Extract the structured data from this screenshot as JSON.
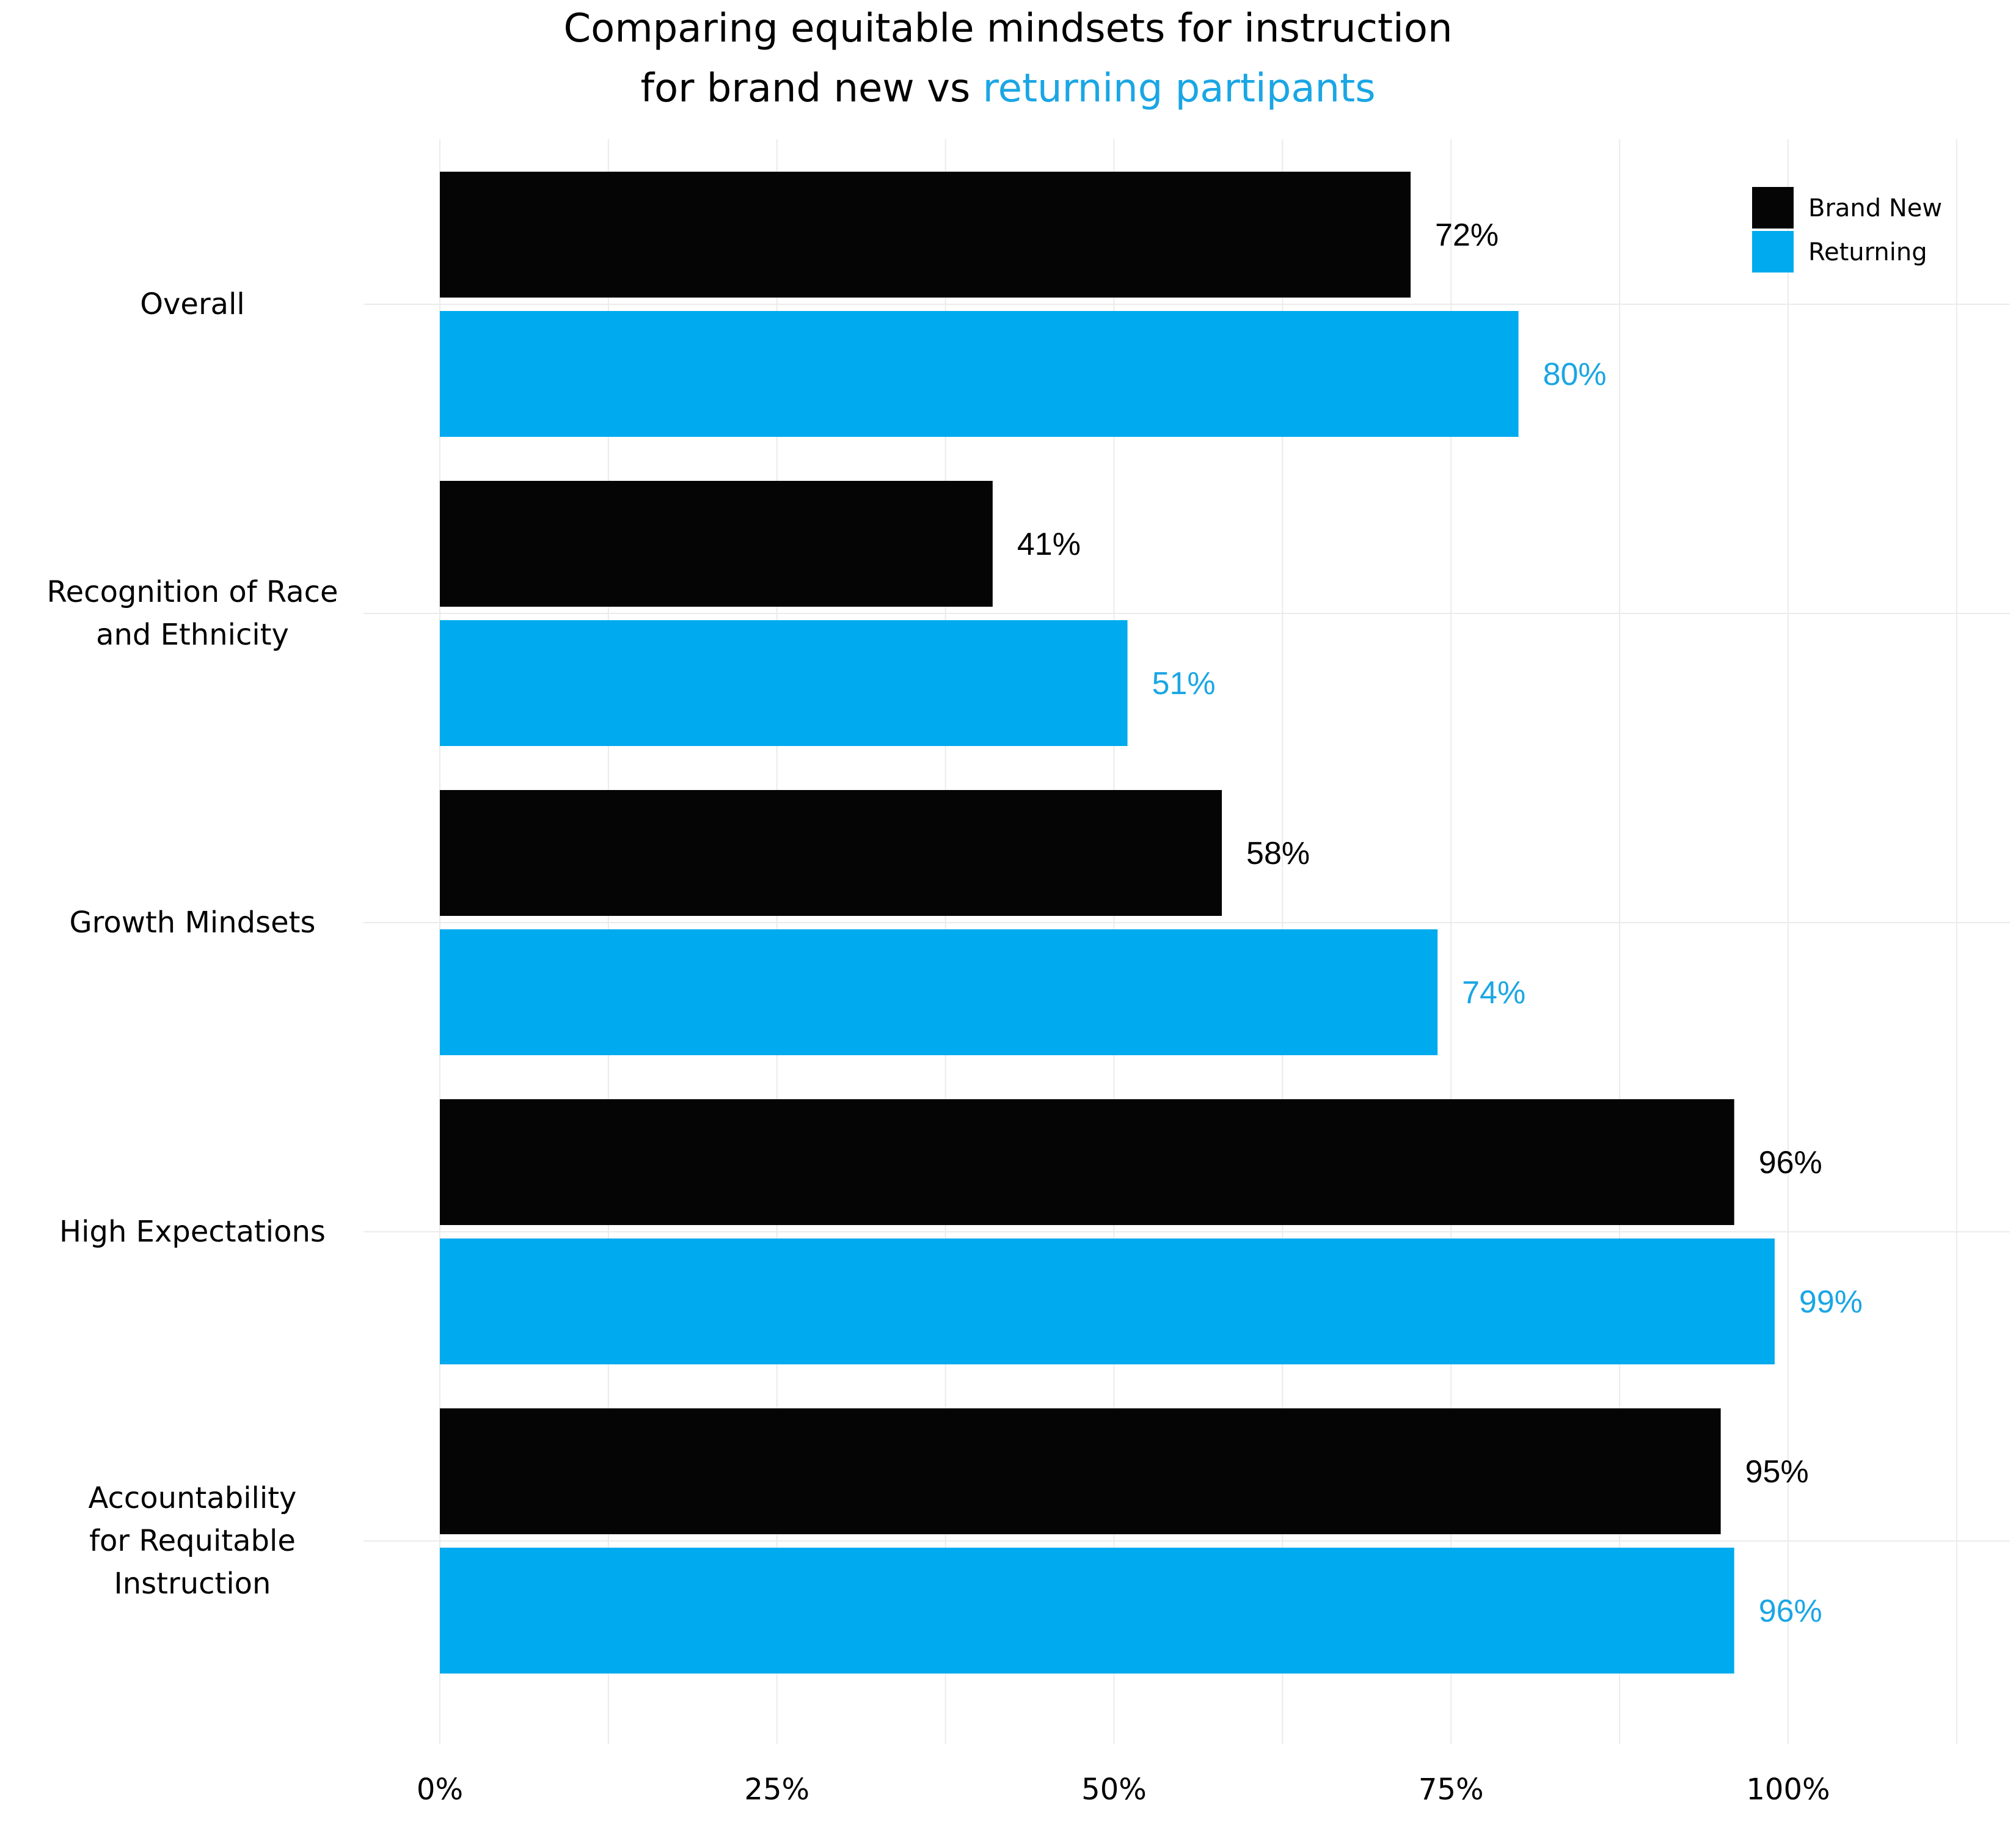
{
  "title": {
    "line1": "Comparing equitable mindsets for instruction",
    "line2_prefix": "for brand new vs ",
    "line2_accent": "returning partipants"
  },
  "colors": {
    "brand_new": "#050505",
    "returning": "#00aaee",
    "returning_text": "#1aa6e4",
    "grid": "#ebebeb"
  },
  "chart_data": {
    "type": "bar",
    "orientation": "horizontal",
    "categories": [
      [
        "Overall"
      ],
      [
        "Recognition of Race",
        "and Ethnicity"
      ],
      [
        "Growth Mindsets"
      ],
      [
        "High Expectations"
      ],
      [
        "Accountability",
        "for Requitable",
        "Instruction"
      ]
    ],
    "series": [
      {
        "name": "Brand New",
        "values": [
          72,
          41,
          58,
          96,
          95
        ],
        "labels": [
          "72%",
          "41%",
          "58%",
          "96%",
          "95%"
        ]
      },
      {
        "name": "Returning",
        "values": [
          80,
          51,
          74,
          99,
          96
        ],
        "labels": [
          "80%",
          "51%",
          "74%",
          "99%",
          "96%"
        ]
      }
    ],
    "xlim": [
      0,
      100
    ],
    "xticks": [
      0,
      25,
      50,
      75,
      100
    ],
    "xtick_labels": [
      "0%",
      "25%",
      "50%",
      "75%",
      "100%"
    ],
    "grid": true,
    "legend_position": "top-right"
  }
}
